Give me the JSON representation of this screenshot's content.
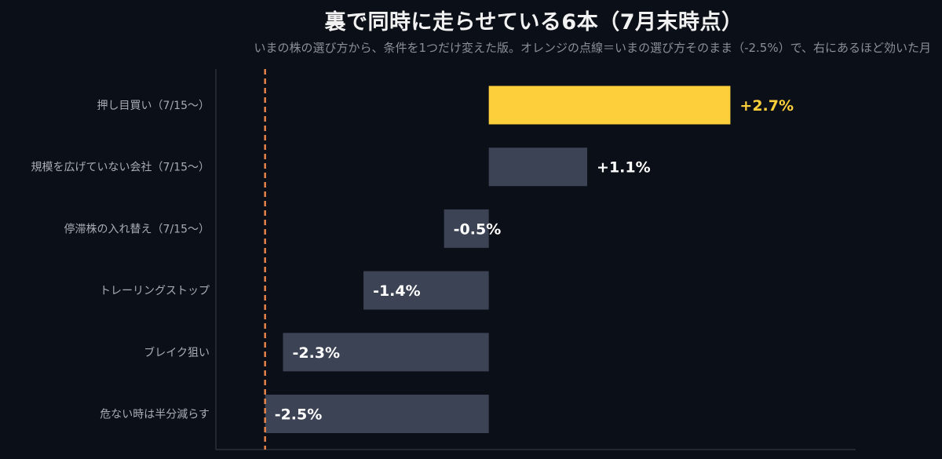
{
  "title": "裏で同時に走らせている6本（7月末時点）",
  "subtitle": "いまの株の選び方から、条件を1つだけ変えた版。オレンジの点線＝いまの選び方そのまま（-2.5%）で、右にあるほど効いた月",
  "colors": {
    "background": "#0b0f17",
    "highlight_bar": "#fdd03b",
    "bar": "#3c4354",
    "baseline_dash": "#e8844a",
    "highlight_text": "#fdd03b",
    "value_text": "#ffffff",
    "axis": "#3a3f4a"
  },
  "chart_data": {
    "type": "bar",
    "orientation": "horizontal",
    "categories": [
      "押し目買い（7/15〜）",
      "規模を広げていない会社（7/15〜）",
      "停滞株の入れ替え（7/15〜）",
      "トレーリングストップ",
      "ブレイク狙い",
      "危ない時は半分減らす"
    ],
    "values": [
      2.7,
      1.1,
      -0.5,
      -1.4,
      -2.3,
      -2.5
    ],
    "value_labels": [
      "+2.7%",
      "+1.1%",
      "-0.5%",
      "-1.4%",
      "-2.3%",
      "-2.5%"
    ],
    "highlight_index": 0,
    "reference_line": -2.5,
    "xlim": [
      -3.05,
      4.1
    ],
    "grid": false,
    "unit": "%"
  }
}
